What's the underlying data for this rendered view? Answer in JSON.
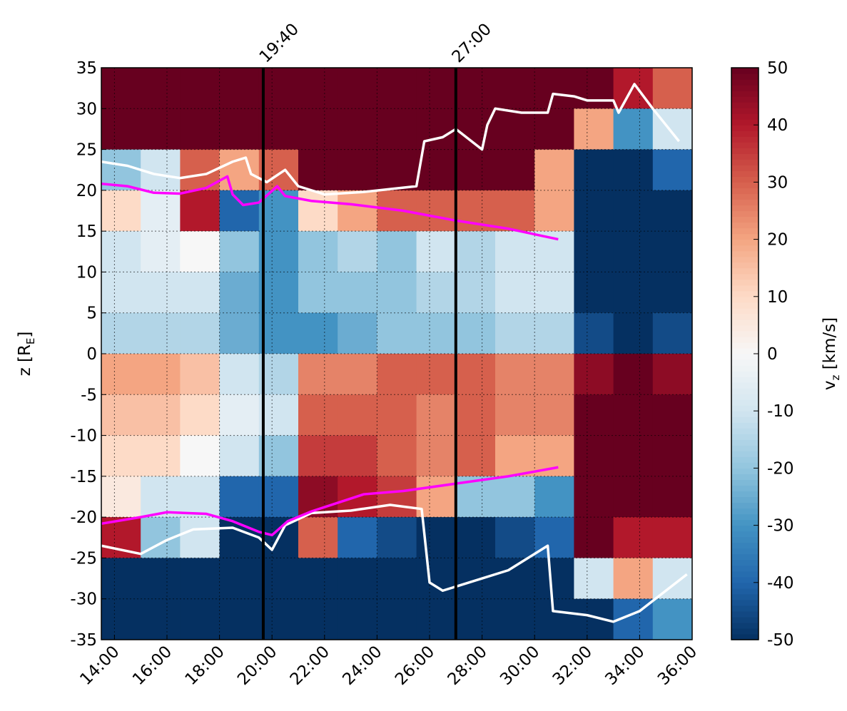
{
  "chart_data": {
    "type": "heatmap",
    "ylabel_parts": [
      "z [R",
      "E",
      "]"
    ],
    "colorbar_label_parts": [
      "v",
      "z",
      " [km/s]"
    ],
    "xlim": [
      13.5,
      36
    ],
    "ylim": [
      -35,
      35
    ],
    "xticks": [
      {
        "value": 14,
        "label": "14:00"
      },
      {
        "value": 16,
        "label": "16:00"
      },
      {
        "value": 18,
        "label": "18:00"
      },
      {
        "value": 20,
        "label": "20:00"
      },
      {
        "value": 22,
        "label": "22:00"
      },
      {
        "value": 24,
        "label": "24:00"
      },
      {
        "value": 26,
        "label": "26:00"
      },
      {
        "value": 28,
        "label": "28:00"
      },
      {
        "value": 30,
        "label": "30:00"
      },
      {
        "value": 32,
        "label": "32:00"
      },
      {
        "value": 34,
        "label": "34:00"
      },
      {
        "value": 36,
        "label": "36:00"
      }
    ],
    "x2ticks": [
      {
        "value": 19.6667,
        "label": "19:40"
      },
      {
        "value": 27,
        "label": "27:00"
      }
    ],
    "yticks": [
      -35,
      -30,
      -25,
      -20,
      -15,
      -10,
      -5,
      0,
      5,
      10,
      15,
      20,
      25,
      30,
      35
    ],
    "grid": true,
    "clim": [
      -50,
      50
    ],
    "cticks": [
      -50,
      -40,
      -30,
      -20,
      -10,
      0,
      10,
      20,
      30,
      40,
      50
    ],
    "heatmap": {
      "x_edges": [
        13.5,
        15,
        16.5,
        18,
        19.5,
        21,
        22.5,
        24,
        25.5,
        27,
        28.5,
        30,
        31.5,
        33,
        34.5,
        36
      ],
      "y_edges": [
        35,
        30,
        25,
        20,
        15,
        10,
        5,
        0,
        -5,
        -10,
        -15,
        -20,
        -25,
        -30,
        -35
      ],
      "values": [
        [
          50,
          50,
          50,
          50,
          50,
          50,
          50,
          50,
          50,
          50,
          50,
          50,
          50,
          40,
          30
        ],
        [
          50,
          50,
          50,
          50,
          50,
          50,
          50,
          50,
          50,
          50,
          50,
          50,
          20,
          -30,
          -10
        ],
        [
          -20,
          -10,
          30,
          20,
          30,
          50,
          50,
          50,
          50,
          50,
          50,
          20,
          -50,
          -50,
          -40
        ],
        [
          10,
          -5,
          40,
          -40,
          -30,
          10,
          20,
          30,
          30,
          30,
          30,
          20,
          -50,
          -50,
          -50
        ],
        [
          -10,
          -5,
          0,
          -20,
          -30,
          -20,
          -15,
          -20,
          -10,
          -15,
          -10,
          -10,
          -50,
          -50,
          -50
        ],
        [
          -10,
          -10,
          -10,
          -25,
          -30,
          -20,
          -20,
          -20,
          -15,
          -15,
          -10,
          -10,
          -50,
          -50,
          -50
        ],
        [
          -15,
          -15,
          -15,
          -25,
          -30,
          -30,
          -25,
          -20,
          -20,
          -20,
          -15,
          -15,
          -45,
          -50,
          -45
        ],
        [
          20,
          20,
          15,
          -10,
          -15,
          25,
          25,
          30,
          30,
          30,
          25,
          25,
          45,
          50,
          45
        ],
        [
          15,
          15,
          10,
          -5,
          -10,
          30,
          30,
          30,
          25,
          30,
          25,
          25,
          50,
          50,
          50
        ],
        [
          10,
          10,
          0,
          -10,
          -20,
          35,
          35,
          30,
          25,
          30,
          20,
          20,
          50,
          50,
          50
        ],
        [
          5,
          -10,
          -10,
          -40,
          -40,
          45,
          40,
          35,
          20,
          -20,
          -20,
          -30,
          50,
          50,
          50
        ],
        [
          40,
          -20,
          -10,
          -50,
          -50,
          30,
          -40,
          -45,
          -50,
          -50,
          -45,
          -40,
          50,
          40,
          40
        ],
        [
          -50,
          -50,
          -50,
          -50,
          -50,
          -50,
          -50,
          -50,
          -50,
          -50,
          -50,
          -50,
          -10,
          20,
          -10
        ],
        [
          -50,
          -50,
          -50,
          -50,
          -50,
          -50,
          -50,
          -50,
          -50,
          -50,
          -50,
          -50,
          -50,
          -40,
          -30
        ]
      ]
    },
    "series": [
      {
        "color": "#ffffff",
        "x": [
          13.5,
          14.5,
          15.5,
          16.5,
          17.5,
          18.5,
          19,
          19.2,
          19.8,
          20.5,
          21,
          22,
          23.5,
          25.5,
          25.8,
          26.5,
          27,
          28,
          28.2,
          28.5,
          29.5,
          30.5,
          30.7,
          31.5,
          32,
          33,
          33.2,
          33.8,
          34.5,
          35,
          35.5
        ],
        "y": [
          23.5,
          23,
          22,
          21.5,
          22,
          23.5,
          24,
          22,
          21,
          22.5,
          20.5,
          19.5,
          19.8,
          20.5,
          26,
          26.5,
          27.5,
          25,
          28,
          30,
          29.5,
          29.5,
          31.8,
          31.5,
          31,
          31,
          29.5,
          33,
          30,
          28,
          26
        ]
      },
      {
        "color": "#ffffff",
        "x": [
          13.5,
          15,
          16,
          17,
          18.5,
          19.5,
          20,
          20.5,
          21.5,
          23,
          24.5,
          25.7,
          26,
          26.5,
          27,
          29,
          30.5,
          30.7,
          32,
          33,
          34,
          35,
          35.8
        ],
        "y": [
          -23.5,
          -24.5,
          -22.8,
          -21.5,
          -21.3,
          -22.5,
          -24,
          -21,
          -19.5,
          -19.2,
          -18.5,
          -19,
          -28,
          -29,
          -28.5,
          -26.5,
          -23.5,
          -31.5,
          -32,
          -32.8,
          -31.5,
          -29,
          -27
        ]
      },
      {
        "color": "#ff00ff",
        "x": [
          13.5,
          14.5,
          15.5,
          16.5,
          17.5,
          18.3,
          18.5,
          18.9,
          19.5,
          20.2,
          20.5,
          21.5,
          23,
          25,
          27,
          29,
          30.9
        ],
        "y": [
          20.8,
          20.5,
          19.7,
          19.6,
          20.3,
          21.7,
          19.5,
          18.2,
          18.5,
          20.5,
          19.3,
          18.7,
          18.3,
          17.5,
          16.3,
          15.3,
          14
        ]
      },
      {
        "color": "#ff00ff",
        "x": [
          13.5,
          15,
          16,
          17.5,
          18.5,
          19.5,
          20,
          20.6,
          21.5,
          23.5,
          25,
          27,
          29,
          30.9
        ],
        "y": [
          -20.8,
          -20,
          -19.4,
          -19.6,
          -20.5,
          -21.8,
          -22.2,
          -20.5,
          -19.3,
          -17.2,
          -16.8,
          -15.9,
          -15,
          -13.9
        ]
      }
    ]
  }
}
